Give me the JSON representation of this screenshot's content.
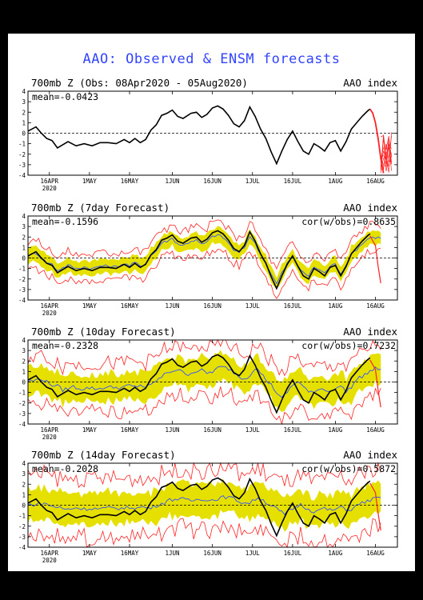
{
  "title": "AAO: Observed & ENSM forecasts",
  "colors": {
    "obs": "#000000",
    "mean": "#3355ff",
    "band": "#e6e000",
    "envelope": "#ff2222",
    "forecast_tail": "#ff2222",
    "title": "#3344ff"
  },
  "x_ticks": [
    "16APR",
    "1MAY",
    "16MAY",
    "1JUN",
    "16JUN",
    "1JUL",
    "16JUL",
    "1AUG",
    "16AUG"
  ],
  "x_year": "2020",
  "y_ticks": [
    "4",
    "3",
    "2",
    "1",
    "0",
    "-1",
    "-2",
    "-3",
    "-4"
  ],
  "chart_data": [
    {
      "type": "line",
      "panel_title": "700mb Z (Obs: 08Apr2020 - 05Aug2020)",
      "right_label": "AAO index",
      "mean_label": "mean=-0.0423",
      "cor_label": "",
      "ylim": [
        -4,
        4
      ],
      "x_range_days": [
        0,
        132
      ],
      "observed": [
        [
          0,
          0.2
        ],
        [
          3,
          0.6
        ],
        [
          5,
          0.0
        ],
        [
          7,
          -0.5
        ],
        [
          9,
          -0.7
        ],
        [
          11,
          -1.4
        ],
        [
          13,
          -1.1
        ],
        [
          15,
          -0.8
        ],
        [
          18,
          -1.2
        ],
        [
          21,
          -1.0
        ],
        [
          24,
          -1.2
        ],
        [
          27,
          -0.9
        ],
        [
          30,
          -0.9
        ],
        [
          33,
          -1.0
        ],
        [
          36,
          -0.6
        ],
        [
          38,
          -0.9
        ],
        [
          40,
          -0.5
        ],
        [
          42,
          -0.9
        ],
        [
          44,
          -0.6
        ],
        [
          46,
          0.3
        ],
        [
          48,
          0.8
        ],
        [
          50,
          1.7
        ],
        [
          52,
          1.9
        ],
        [
          54,
          2.2
        ],
        [
          56,
          1.6
        ],
        [
          58,
          1.4
        ],
        [
          61,
          1.9
        ],
        [
          63,
          2.0
        ],
        [
          65,
          1.5
        ],
        [
          67,
          1.8
        ],
        [
          69,
          2.4
        ],
        [
          71,
          2.6
        ],
        [
          73,
          2.3
        ],
        [
          75,
          1.7
        ],
        [
          77,
          0.9
        ],
        [
          79,
          0.6
        ],
        [
          81,
          1.2
        ],
        [
          83,
          2.5
        ],
        [
          85,
          1.6
        ],
        [
          87,
          0.4
        ],
        [
          89,
          -0.5
        ],
        [
          91,
          -1.8
        ],
        [
          93,
          -2.9
        ],
        [
          95,
          -1.7
        ],
        [
          97,
          -0.6
        ],
        [
          99,
          0.2
        ],
        [
          101,
          -0.8
        ],
        [
          103,
          -1.7
        ],
        [
          105,
          -2.0
        ],
        [
          107,
          -1.0
        ],
        [
          109,
          -1.3
        ],
        [
          111,
          -1.7
        ],
        [
          113,
          -0.9
        ],
        [
          115,
          -0.7
        ],
        [
          117,
          -1.7
        ],
        [
          119,
          -0.8
        ],
        [
          121,
          0.4
        ],
        [
          123,
          1.0
        ],
        [
          125,
          1.6
        ],
        [
          127,
          2.1
        ],
        [
          128,
          2.3
        ]
      ],
      "forecast_tail": [
        [
          128,
          2.3
        ],
        [
          129,
          1.9
        ],
        [
          130,
          1.0
        ],
        [
          131,
          -0.5
        ],
        [
          132,
          -2.4
        ],
        [
          133,
          -3.8
        ]
      ],
      "ensemble_tail": {
        "x_start": 128,
        "x_end": 136,
        "count": 10
      },
      "has_band": false
    },
    {
      "type": "line",
      "panel_title": "700mb Z (7day Forecast)",
      "right_label": "AAO index",
      "mean_label": "mean=-0.1596",
      "cor_label": "cor(w/obs)=0.8635",
      "ylim": [
        -4,
        4
      ],
      "x_range_days": [
        0,
        132
      ],
      "band_halfwidth": 0.7,
      "envelope_halfwidth": 1.3,
      "ensemble_mean_shift": 0,
      "ensemble_mean_scale": 0.85,
      "ensemble_mean_noise": 0.25,
      "has_band": true
    },
    {
      "type": "line",
      "panel_title": "700mb Z (10day Forecast)",
      "right_label": "AAO index",
      "mean_label": "mean=-0.2328",
      "cor_label": "cor(w/obs)=0.7232",
      "ylim": [
        -4,
        4
      ],
      "x_range_days": [
        0,
        132
      ],
      "band_halfwidth": 1.3,
      "envelope_halfwidth": 2.3,
      "ensemble_mean_shift": 2,
      "ensemble_mean_scale": 0.55,
      "ensemble_mean_noise": 0.35,
      "has_band": true
    },
    {
      "type": "line",
      "panel_title": "700mb Z (14day Forecast)",
      "right_label": "AAO index",
      "mean_label": "mean=-0.2028",
      "cor_label": "cor(w/obs)=0.5872",
      "ylim": [
        -4,
        4
      ],
      "x_range_days": [
        0,
        132
      ],
      "band_halfwidth": 1.5,
      "envelope_halfwidth": 2.8,
      "ensemble_mean_shift": 3,
      "ensemble_mean_scale": 0.3,
      "ensemble_mean_noise": 0.35,
      "has_band": true
    }
  ]
}
